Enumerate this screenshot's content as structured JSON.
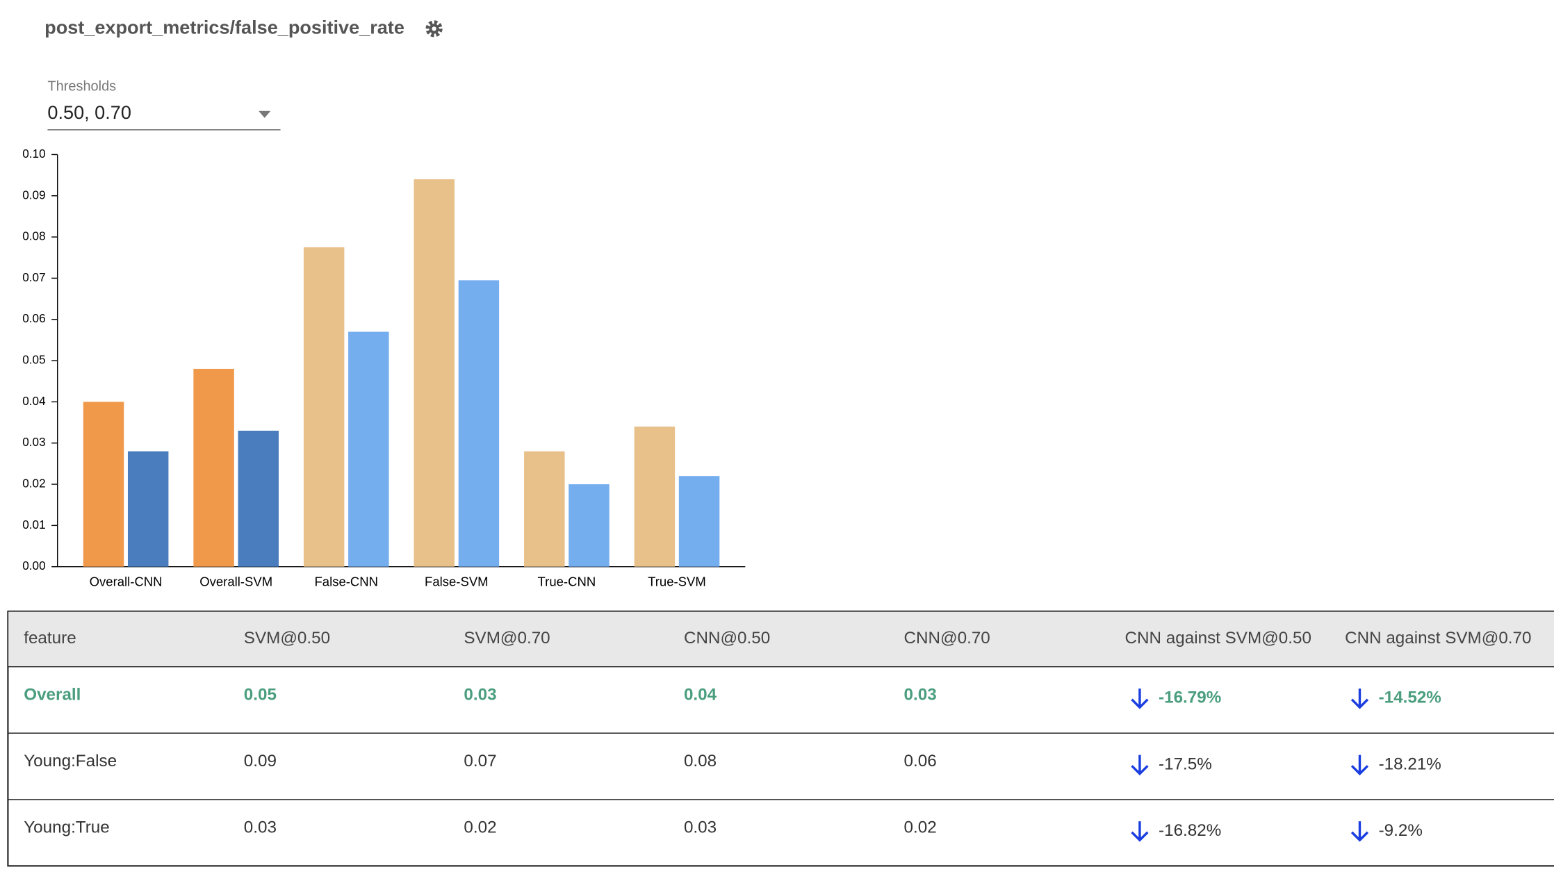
{
  "header": {
    "title": "post_export_metrics/false_positive_rate"
  },
  "thresholds": {
    "label": "Thresholds",
    "value": "0.50, 0.70"
  },
  "chart_data": {
    "type": "bar",
    "categories": [
      "Overall-CNN",
      "Overall-SVM",
      "False-CNN",
      "False-SVM",
      "True-CNN",
      "True-SVM"
    ],
    "series": [
      {
        "colors": [
          "#f0994a",
          "#f0994a",
          "#e8c08a",
          "#e8c08a",
          "#e8c08a",
          "#e8c08a"
        ],
        "values": [
          0.04,
          0.048,
          0.0775,
          0.094,
          0.028,
          0.034
        ]
      },
      {
        "colors": [
          "#4a7dbd",
          "#4a7dbd",
          "#75aeef",
          "#75aeef",
          "#75aeef",
          "#75aeef"
        ],
        "values": [
          0.028,
          0.033,
          0.057,
          0.0695,
          0.02,
          0.022
        ]
      }
    ],
    "ylim": [
      0,
      0.1
    ],
    "yticks": [
      {
        "value": 0,
        "label": "0.00"
      },
      {
        "value": 0.01,
        "label": "0.01"
      },
      {
        "value": 0.02,
        "label": "0.02"
      },
      {
        "value": 0.03,
        "label": "0.03"
      },
      {
        "value": 0.04,
        "label": "0.04"
      },
      {
        "value": 0.05,
        "label": "0.05"
      },
      {
        "value": 0.06,
        "label": "0.06"
      },
      {
        "value": 0.07,
        "label": "0.07"
      },
      {
        "value": 0.08,
        "label": "0.08"
      },
      {
        "value": 0.09,
        "label": "0.09"
      },
      {
        "value": 0.1,
        "label": "0.10"
      }
    ]
  },
  "table": {
    "header": [
      "feature",
      "SVM@0.50",
      "SVM@0.70",
      "CNN@0.50",
      "CNN@0.70",
      "CNN against SVM@0.50",
      "CNN against SVM@0.70"
    ],
    "rows": [
      [
        "Overall",
        "0.05",
        "0.03",
        "0.04",
        "0.03",
        "-16.79%",
        "-14.52%"
      ],
      [
        "Young:False",
        "0.09",
        "0.07",
        "0.08",
        "0.06",
        "-17.5%",
        "-18.21%"
      ],
      [
        "Young:True",
        "0.03",
        "0.02",
        "0.03",
        "0.02",
        "-16.82%",
        "-9.2%"
      ]
    ]
  }
}
